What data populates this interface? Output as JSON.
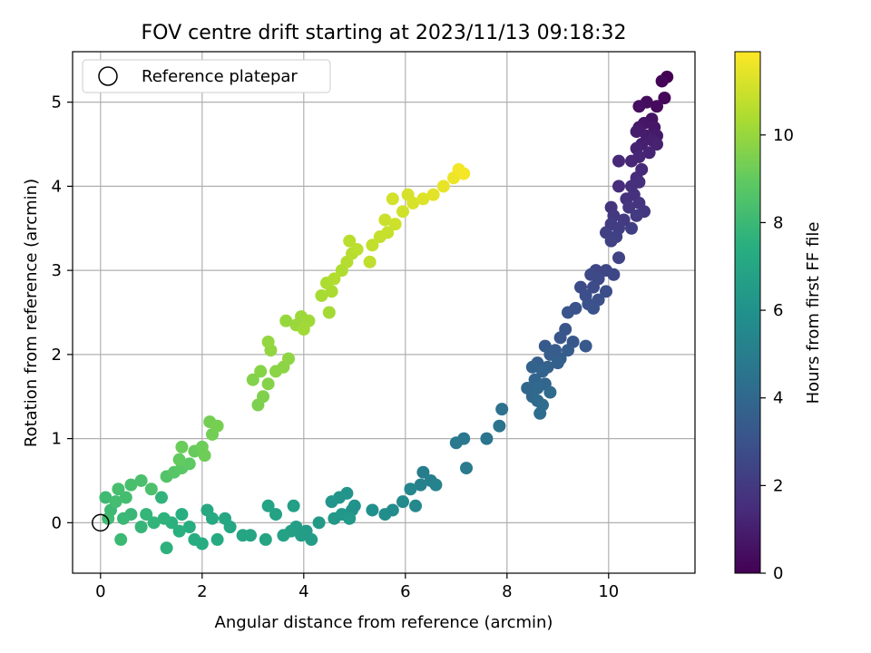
{
  "chart_data": {
    "type": "scatter",
    "title": "FOV centre drift starting at 2023/11/13 09:18:32",
    "xlabel": "Angular distance from reference (arcmin)",
    "ylabel": "Rotation from reference (arcmin)",
    "xlim": [
      -0.55,
      11.7
    ],
    "ylim": [
      -0.6,
      5.6
    ],
    "x_ticks": [
      0,
      2,
      4,
      6,
      8,
      10
    ],
    "y_ticks": [
      0,
      1,
      2,
      3,
      4,
      5
    ],
    "grid": true,
    "legend": {
      "placement": "top-left",
      "entries": [
        "Reference platepar"
      ]
    },
    "reference_point": {
      "x": 0,
      "y": 0
    },
    "colorbar": {
      "label": "Hours from first FF file",
      "colormap": "viridis",
      "range": [
        0,
        11.9
      ],
      "ticks": [
        0,
        2,
        4,
        6,
        8,
        10
      ]
    },
    "series": [
      {
        "color_by": "hours",
        "points": [
          [
            11.15,
            5.3,
            0.0
          ],
          [
            11.05,
            5.25,
            0.1
          ],
          [
            11.1,
            5.05,
            0.2
          ],
          [
            10.95,
            4.95,
            0.3
          ],
          [
            10.75,
            5.0,
            0.4
          ],
          [
            10.6,
            4.95,
            0.5
          ],
          [
            10.85,
            4.8,
            0.6
          ],
          [
            10.7,
            4.75,
            0.7
          ],
          [
            10.9,
            4.7,
            0.75
          ],
          [
            10.6,
            4.7,
            0.8
          ],
          [
            10.95,
            4.6,
            0.85
          ],
          [
            10.75,
            4.6,
            0.9
          ],
          [
            10.55,
            4.65,
            0.95
          ],
          [
            10.85,
            4.55,
            1.0
          ],
          [
            10.65,
            4.5,
            1.05
          ],
          [
            10.95,
            4.5,
            1.1
          ],
          [
            10.55,
            4.45,
            1.15
          ],
          [
            10.8,
            4.4,
            1.2
          ],
          [
            10.6,
            4.35,
            1.25
          ],
          [
            10.45,
            4.3,
            1.3
          ],
          [
            10.2,
            4.3,
            1.35
          ],
          [
            10.65,
            4.2,
            1.4
          ],
          [
            10.55,
            4.1,
            1.45
          ],
          [
            10.2,
            4.0,
            1.5
          ],
          [
            10.6,
            4.05,
            1.55
          ],
          [
            10.45,
            4.0,
            1.6
          ],
          [
            10.5,
            3.9,
            1.65
          ],
          [
            10.35,
            3.85,
            1.7
          ],
          [
            10.6,
            3.8,
            1.75
          ],
          [
            10.05,
            3.75,
            1.8
          ],
          [
            10.4,
            3.75,
            1.85
          ],
          [
            10.7,
            3.7,
            1.9
          ],
          [
            10.1,
            3.65,
            1.95
          ],
          [
            10.3,
            3.6,
            2.0
          ],
          [
            10.55,
            3.65,
            2.05
          ],
          [
            10.05,
            3.55,
            2.1
          ],
          [
            10.2,
            3.5,
            2.15
          ],
          [
            10.45,
            3.5,
            2.2
          ],
          [
            9.95,
            3.45,
            2.25
          ],
          [
            10.15,
            3.4,
            2.3
          ],
          [
            10.05,
            3.35,
            2.35
          ],
          [
            10.2,
            3.15,
            2.4
          ],
          [
            9.75,
            3.0,
            2.45
          ],
          [
            9.95,
            3.0,
            2.5
          ],
          [
            10.1,
            2.95,
            2.55
          ],
          [
            9.65,
            2.95,
            2.6
          ],
          [
            9.8,
            2.9,
            2.65
          ],
          [
            9.45,
            2.8,
            2.7
          ],
          [
            9.7,
            2.8,
            2.75
          ],
          [
            9.95,
            2.75,
            2.8
          ],
          [
            9.55,
            2.7,
            2.85
          ],
          [
            9.8,
            2.65,
            2.9
          ],
          [
            9.6,
            2.6,
            2.95
          ],
          [
            9.35,
            2.55,
            3.0
          ],
          [
            9.7,
            2.55,
            3.05
          ],
          [
            9.2,
            2.5,
            3.1
          ],
          [
            9.15,
            2.3,
            3.15
          ],
          [
            9.05,
            2.2,
            3.2
          ],
          [
            9.3,
            2.15,
            3.25
          ],
          [
            9.55,
            2.1,
            3.3
          ],
          [
            8.75,
            2.1,
            3.35
          ],
          [
            8.95,
            2.05,
            3.4
          ],
          [
            9.2,
            2.05,
            3.45
          ],
          [
            8.85,
            2.0,
            3.5
          ],
          [
            9.05,
            1.95,
            3.55
          ],
          [
            8.6,
            1.9,
            3.6
          ],
          [
            9.0,
            1.9,
            3.65
          ],
          [
            8.8,
            1.85,
            3.7
          ],
          [
            8.5,
            1.85,
            3.75
          ],
          [
            8.7,
            1.8,
            3.8
          ],
          [
            8.55,
            1.7,
            3.85
          ],
          [
            8.75,
            1.65,
            3.9
          ],
          [
            8.4,
            1.6,
            3.95
          ],
          [
            8.6,
            1.6,
            4.0
          ],
          [
            8.5,
            1.5,
            4.05
          ],
          [
            8.85,
            1.55,
            4.1
          ],
          [
            8.6,
            1.45,
            4.15
          ],
          [
            8.7,
            1.4,
            4.2
          ],
          [
            8.65,
            1.3,
            4.25
          ],
          [
            7.9,
            1.35,
            4.4
          ],
          [
            7.85,
            1.15,
            4.5
          ],
          [
            7.6,
            1.0,
            4.6
          ],
          [
            7.15,
            1.0,
            4.7
          ],
          [
            7.0,
            0.95,
            4.8
          ],
          [
            7.2,
            0.65,
            4.9
          ],
          [
            6.35,
            0.6,
            5.0
          ],
          [
            6.5,
            0.5,
            5.1
          ],
          [
            6.3,
            0.45,
            5.2
          ],
          [
            6.6,
            0.45,
            5.3
          ],
          [
            6.1,
            0.4,
            5.4
          ],
          [
            6.2,
            0.2,
            5.5
          ],
          [
            5.95,
            0.25,
            5.6
          ],
          [
            5.75,
            0.15,
            5.7
          ],
          [
            5.6,
            0.1,
            5.8
          ],
          [
            5.35,
            0.15,
            5.9
          ],
          [
            5.0,
            0.2,
            6.0
          ],
          [
            4.95,
            0.15,
            6.05
          ],
          [
            4.85,
            0.35,
            6.1
          ],
          [
            4.7,
            0.3,
            6.15
          ],
          [
            4.55,
            0.25,
            6.2
          ],
          [
            4.75,
            0.1,
            6.25
          ],
          [
            4.6,
            0.05,
            6.3
          ],
          [
            4.9,
            0.05,
            6.35
          ],
          [
            4.3,
            0.0,
            6.4
          ],
          [
            4.05,
            -0.1,
            6.45
          ],
          [
            4.15,
            -0.2,
            6.5
          ],
          [
            3.95,
            -0.15,
            6.55
          ],
          [
            3.85,
            -0.05,
            6.6
          ],
          [
            3.8,
            0.2,
            6.65
          ],
          [
            3.75,
            -0.1,
            6.7
          ],
          [
            3.6,
            -0.15,
            6.75
          ],
          [
            3.45,
            0.1,
            6.8
          ],
          [
            3.3,
            0.2,
            6.85
          ],
          [
            3.25,
            -0.2,
            6.9
          ],
          [
            2.95,
            -0.15,
            6.95
          ],
          [
            2.8,
            -0.15,
            7.0
          ],
          [
            2.55,
            -0.05,
            7.05
          ],
          [
            2.45,
            0.05,
            7.1
          ],
          [
            2.1,
            0.15,
            7.15
          ],
          [
            2.2,
            0.05,
            7.2
          ],
          [
            2.3,
            -0.2,
            7.25
          ],
          [
            2.0,
            -0.25,
            7.3
          ],
          [
            1.85,
            -0.2,
            7.35
          ],
          [
            1.75,
            -0.05,
            7.4
          ],
          [
            1.6,
            0.1,
            7.45
          ],
          [
            1.55,
            -0.1,
            7.5
          ],
          [
            1.4,
            0.0,
            7.55
          ],
          [
            1.3,
            -0.3,
            7.6
          ],
          [
            1.25,
            0.05,
            7.65
          ],
          [
            1.2,
            0.3,
            7.7
          ],
          [
            1.05,
            0.0,
            7.75
          ],
          [
            0.9,
            0.1,
            7.8
          ],
          [
            0.8,
            -0.05,
            7.85
          ],
          [
            0.6,
            0.1,
            7.9
          ],
          [
            0.45,
            0.05,
            7.95
          ],
          [
            0.4,
            -0.2,
            8.0
          ],
          [
            0.2,
            0.15,
            8.05
          ],
          [
            0.1,
            0.3,
            8.1
          ],
          [
            0.15,
            0.05,
            8.15
          ],
          [
            0.3,
            0.25,
            8.2
          ],
          [
            0.5,
            0.3,
            8.25
          ],
          [
            0.35,
            0.4,
            8.3
          ],
          [
            0.6,
            0.45,
            8.35
          ],
          [
            0.8,
            0.5,
            8.4
          ],
          [
            1.0,
            0.4,
            8.45
          ],
          [
            1.3,
            0.55,
            8.6
          ],
          [
            1.45,
            0.6,
            8.7
          ],
          [
            1.6,
            0.65,
            8.8
          ],
          [
            1.75,
            0.7,
            8.9
          ],
          [
            1.55,
            0.75,
            9.0
          ],
          [
            1.85,
            0.85,
            9.1
          ],
          [
            1.6,
            0.9,
            9.15
          ],
          [
            2.0,
            0.9,
            9.2
          ],
          [
            2.05,
            0.8,
            9.25
          ],
          [
            2.2,
            1.05,
            9.3
          ],
          [
            2.15,
            1.2,
            9.35
          ],
          [
            2.3,
            1.15,
            9.4
          ],
          [
            3.1,
            1.4,
            9.5
          ],
          [
            3.2,
            1.5,
            9.55
          ],
          [
            3.0,
            1.7,
            9.6
          ],
          [
            3.3,
            1.65,
            9.65
          ],
          [
            3.15,
            1.8,
            9.7
          ],
          [
            3.45,
            1.8,
            9.75
          ],
          [
            3.6,
            1.85,
            9.8
          ],
          [
            3.7,
            1.95,
            9.85
          ],
          [
            3.35,
            2.05,
            9.9
          ],
          [
            3.3,
            2.15,
            9.95
          ],
          [
            3.65,
            2.4,
            10.0
          ],
          [
            3.85,
            2.35,
            10.05
          ],
          [
            3.95,
            2.45,
            10.1
          ],
          [
            4.1,
            2.4,
            10.15
          ],
          [
            4.0,
            2.3,
            10.2
          ],
          [
            4.5,
            2.5,
            10.25
          ],
          [
            4.35,
            2.7,
            10.3
          ],
          [
            4.55,
            2.75,
            10.35
          ],
          [
            4.45,
            2.85,
            10.4
          ],
          [
            4.75,
            3.0,
            10.45
          ],
          [
            4.6,
            2.9,
            10.5
          ],
          [
            4.85,
            3.1,
            10.55
          ],
          [
            4.95,
            3.2,
            10.6
          ],
          [
            4.9,
            3.35,
            10.65
          ],
          [
            5.05,
            3.25,
            10.7
          ],
          [
            5.3,
            3.1,
            10.75
          ],
          [
            5.35,
            3.3,
            10.8
          ],
          [
            5.5,
            3.4,
            10.85
          ],
          [
            5.65,
            3.45,
            10.9
          ],
          [
            5.6,
            3.6,
            10.95
          ],
          [
            5.8,
            3.55,
            11.0
          ],
          [
            5.95,
            3.7,
            11.05
          ],
          [
            5.75,
            3.85,
            11.1
          ],
          [
            6.05,
            3.9,
            11.15
          ],
          [
            6.15,
            3.8,
            11.2
          ],
          [
            6.35,
            3.85,
            11.3
          ],
          [
            6.55,
            3.9,
            11.4
          ],
          [
            6.75,
            4.0,
            11.5
          ],
          [
            6.95,
            4.1,
            11.6
          ],
          [
            7.05,
            4.2,
            11.7
          ],
          [
            7.15,
            4.15,
            11.75
          ]
        ]
      }
    ]
  }
}
